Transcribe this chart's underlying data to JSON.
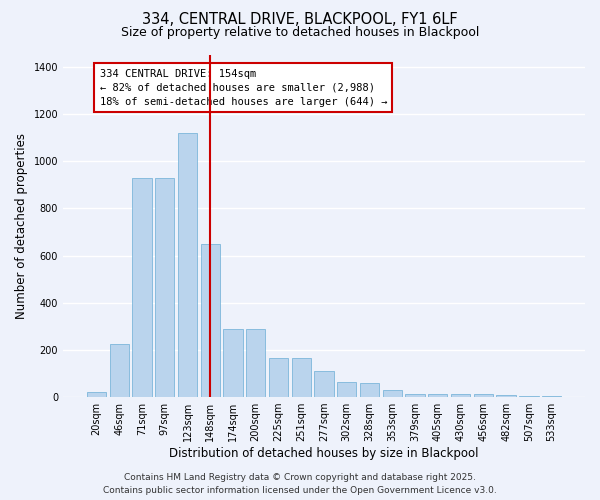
{
  "title_line1": "334, CENTRAL DRIVE, BLACKPOOL, FY1 6LF",
  "title_line2": "Size of property relative to detached houses in Blackpool",
  "xlabel": "Distribution of detached houses by size in Blackpool",
  "ylabel": "Number of detached properties",
  "annotation_line1": "334 CENTRAL DRIVE: 154sqm",
  "annotation_line2": "← 82% of detached houses are smaller (2,988)",
  "annotation_line3": "18% of semi-detached houses are larger (644) →",
  "footer_line1": "Contains HM Land Registry data © Crown copyright and database right 2025.",
  "footer_line2": "Contains public sector information licensed under the Open Government Licence v3.0.",
  "categories": [
    "20sqm",
    "46sqm",
    "71sqm",
    "97sqm",
    "123sqm",
    "148sqm",
    "174sqm",
    "200sqm",
    "225sqm",
    "251sqm",
    "277sqm",
    "302sqm",
    "328sqm",
    "353sqm",
    "379sqm",
    "405sqm",
    "430sqm",
    "456sqm",
    "482sqm",
    "507sqm",
    "533sqm"
  ],
  "values": [
    20,
    225,
    930,
    930,
    1120,
    650,
    290,
    290,
    165,
    165,
    110,
    65,
    60,
    30,
    15,
    15,
    15,
    15,
    10,
    5,
    5
  ],
  "bar_color": "#bad4ed",
  "bar_edge_color": "#6baed6",
  "vline_color": "#cc0000",
  "vline_x_index": 5,
  "background_color": "#eef2fb",
  "grid_color": "#ffffff",
  "ylim": [
    0,
    1450
  ],
  "yticks": [
    0,
    200,
    400,
    600,
    800,
    1000,
    1200,
    1400
  ],
  "title_fontsize": 10.5,
  "subtitle_fontsize": 9,
  "axis_label_fontsize": 8.5,
  "tick_fontsize": 7,
  "annotation_fontsize": 7.5,
  "footer_fontsize": 6.5
}
